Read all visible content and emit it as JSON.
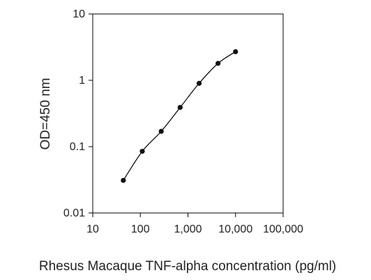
{
  "chart_data": {
    "type": "line",
    "title": "",
    "xlabel": "Rhesus Macaque TNF-alpha concentration (pg/ml)",
    "ylabel": "OD=450 nm",
    "x_scale": "log",
    "y_scale": "log",
    "xlim": [
      10,
      100000
    ],
    "ylim": [
      0.01,
      10
    ],
    "x_ticks": [
      10,
      100,
      1000,
      10000,
      100000
    ],
    "x_tick_labels": [
      "10",
      "100",
      "1,000",
      "10,000",
      "100,000"
    ],
    "y_ticks": [
      0.01,
      0.1,
      1,
      10
    ],
    "y_tick_labels": [
      "0.01",
      "0.1",
      "1",
      "10"
    ],
    "grid": false,
    "legend": "none",
    "series": [
      {
        "x": [
          43.9,
          109.8,
          274.4,
          686,
          1715,
          4288,
          10000
        ],
        "y": [
          0.031,
          0.085,
          0.17,
          0.39,
          0.9,
          1.8,
          2.7
        ]
      }
    ]
  }
}
